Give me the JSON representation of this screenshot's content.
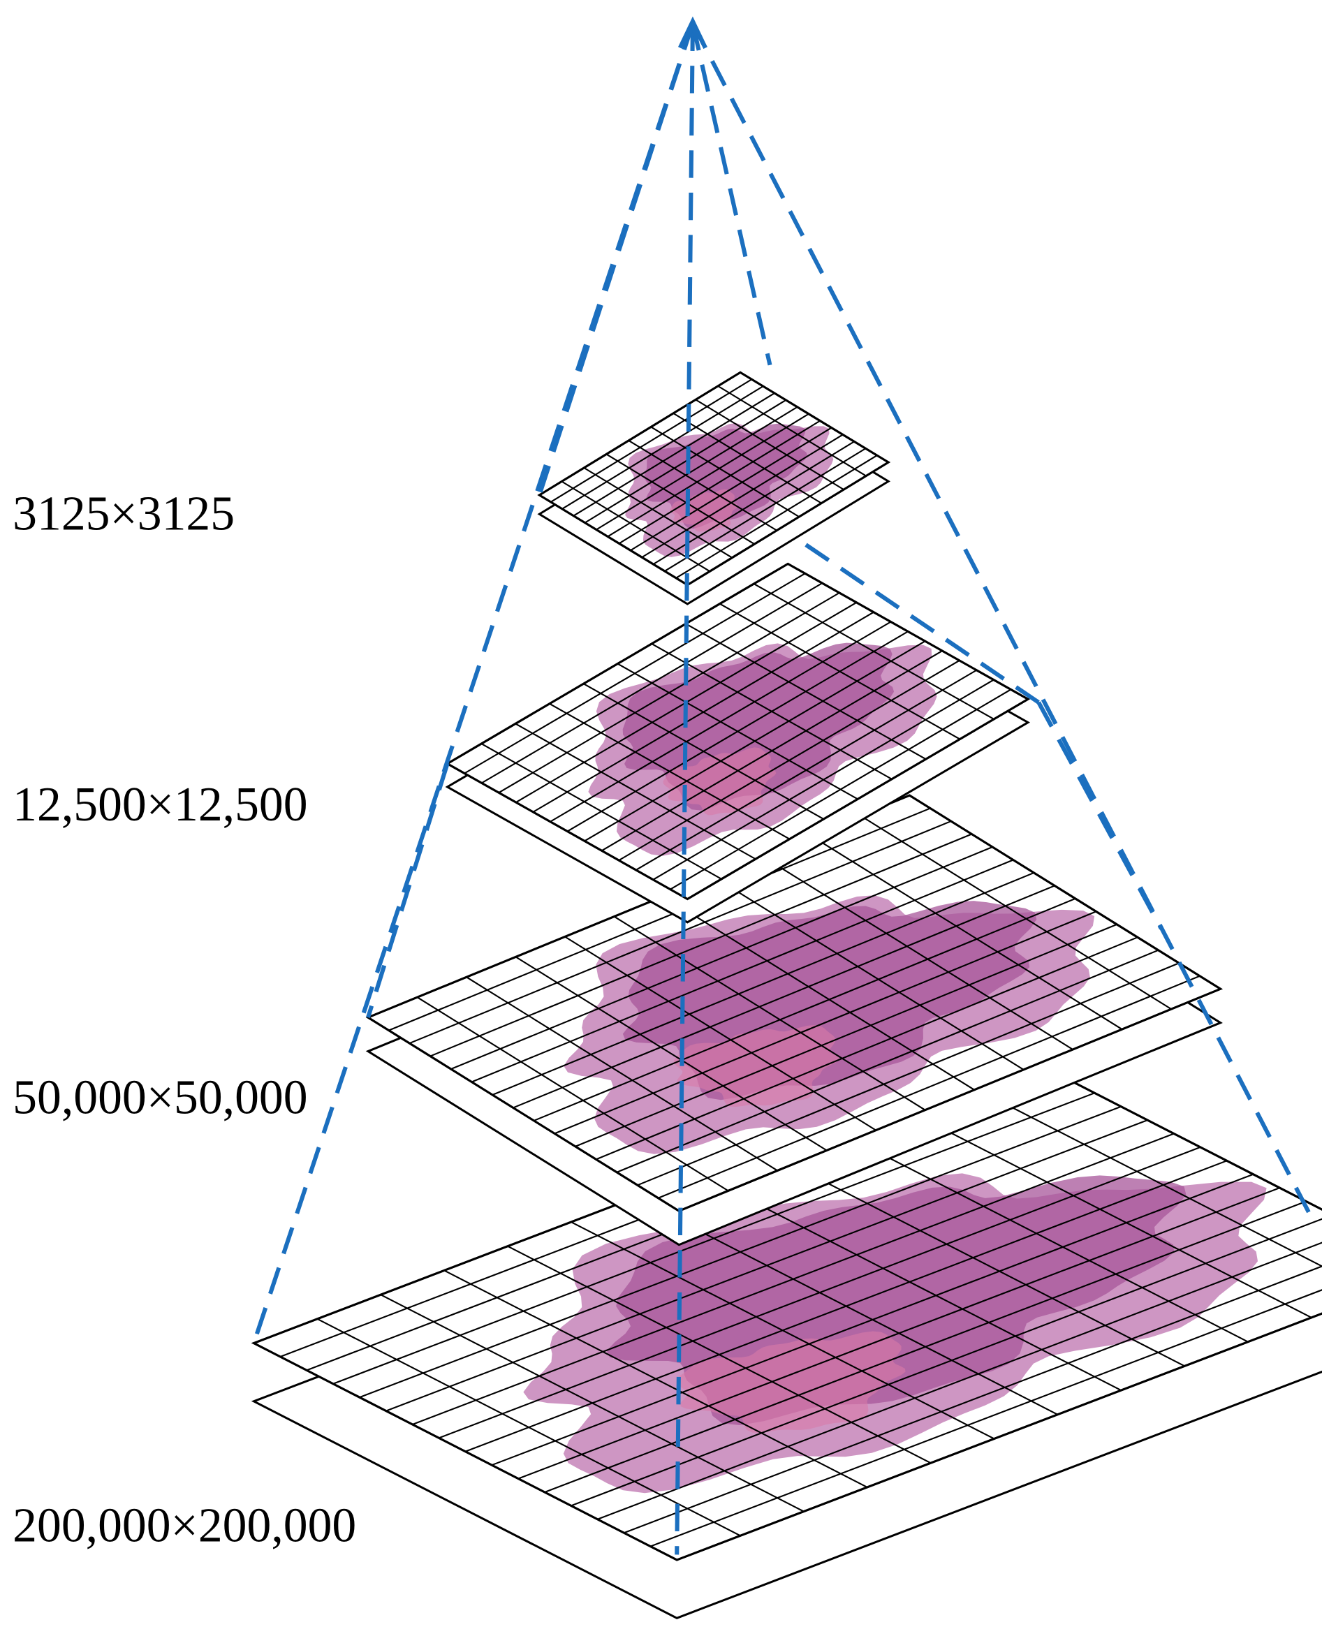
{
  "levels": [
    {
      "label": "3125×3125"
    },
    {
      "label": "12,500×12,500"
    },
    {
      "label": "50,000×50,000"
    },
    {
      "label": "200,000×200,000"
    }
  ]
}
